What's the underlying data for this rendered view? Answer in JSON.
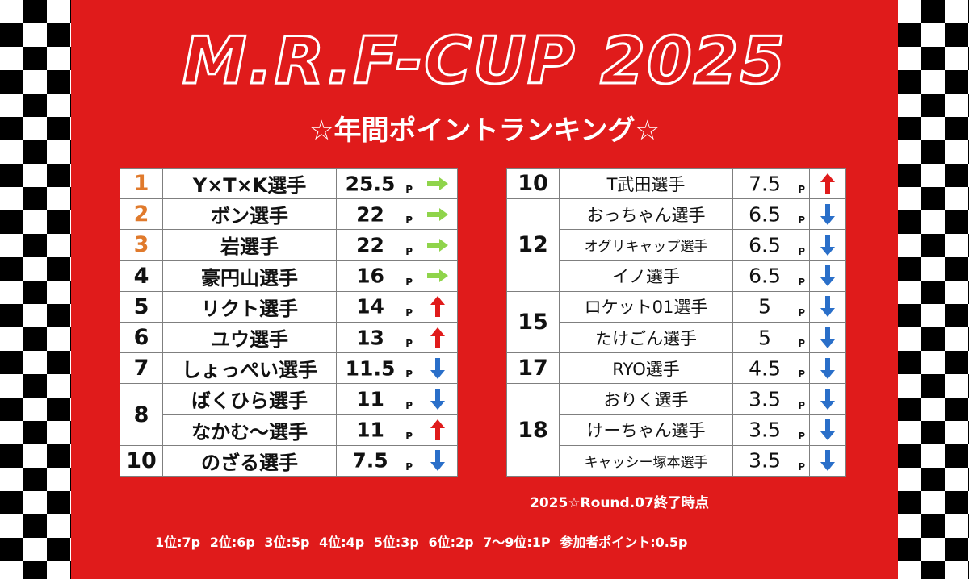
{
  "title": "M.R.F-CUP 2025",
  "subtitle": "☆年間ポイントランキング☆",
  "unit": "P",
  "left_rows": [
    {
      "rank": "1",
      "name": "Y×T×K選手",
      "points": "25.5",
      "trend": "flat"
    },
    {
      "rank": "2",
      "name": "ボン選手",
      "points": "22",
      "trend": "flat"
    },
    {
      "rank": "3",
      "name": "岩選手",
      "points": "22",
      "trend": "flat"
    },
    {
      "rank": "4",
      "name": "豪円山選手",
      "points": "16",
      "trend": "flat"
    },
    {
      "rank": "5",
      "name": "リクト選手",
      "points": "14",
      "trend": "up"
    },
    {
      "rank": "6",
      "name": "ユウ選手",
      "points": "13",
      "trend": "up"
    },
    {
      "rank": "7",
      "name": "しょっぺい選手",
      "points": "11.5",
      "trend": "down"
    },
    {
      "rank": "8",
      "name": "ばくひら選手",
      "points": "11",
      "trend": "down"
    },
    {
      "rank": "",
      "name": "なかむ～選手",
      "points": "11",
      "trend": "up"
    },
    {
      "rank": "10",
      "name": "のざる選手",
      "points": "7.5",
      "trend": "down"
    }
  ],
  "right_rows": [
    {
      "rank": "10",
      "name": "T武田選手",
      "points": "7.5",
      "trend": "up"
    },
    {
      "rank": "12",
      "name": "おっちゃん選手",
      "points": "6.5",
      "trend": "down"
    },
    {
      "rank": "",
      "name": "オグリキャップ選手",
      "points": "6.5",
      "trend": "down"
    },
    {
      "rank": "",
      "name": "イノ選手",
      "points": "6.5",
      "trend": "down"
    },
    {
      "rank": "15",
      "name": "ロケット01選手",
      "points": "5",
      "trend": "down"
    },
    {
      "rank": "",
      "name": "たけごん選手",
      "points": "5",
      "trend": "down"
    },
    {
      "rank": "17",
      "name": "RYO選手",
      "points": "4.5",
      "trend": "down"
    },
    {
      "rank": "18",
      "name": "おりく選手",
      "points": "3.5",
      "trend": "down"
    },
    {
      "rank": "",
      "name": "けーちゃん選手",
      "points": "3.5",
      "trend": "down"
    },
    {
      "rank": "",
      "name": "キャッシー塚本選手",
      "points": "3.5",
      "trend": "down"
    }
  ],
  "round_note": "2025☆Round.07終了時点",
  "points_note": "1位:7p 2位:6p 3位:5p 4位:4p 5位:3p 6位:2p 7～9位:1P 参加者ポイント:0.5p",
  "colors": {
    "background": "#e01b1b",
    "top3_rank": "#e07a2c",
    "flat_arrow": "#8fd44b",
    "up_arrow": "#e01b1b",
    "down_arrow": "#2a6fc9"
  }
}
